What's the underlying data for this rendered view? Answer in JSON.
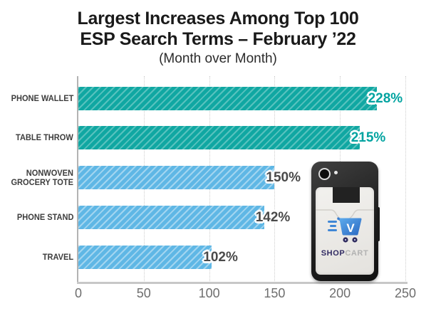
{
  "title": {
    "line1": "Largest Increases Among Top 100",
    "line2": "ESP Search Terms – February ’22",
    "subtitle": "(Month over Month)"
  },
  "chart_data": {
    "type": "bar",
    "orientation": "horizontal",
    "title": "Largest Increases Among Top 100 ESP Search Terms – February ’22",
    "subtitle": "(Month over Month)",
    "categories": [
      "PHONE WALLET",
      "TABLE THROW",
      "NONWOVEN GROCERY TOTE",
      "PHONE STAND",
      "TRAVEL"
    ],
    "values": [
      228,
      215,
      150,
      142,
      102
    ],
    "value_labels": [
      "228%",
      "215%",
      "150%",
      "142%",
      "102%"
    ],
    "xlim": [
      0,
      250
    ],
    "x_ticks": [
      "0",
      "50",
      "100",
      "150",
      "200",
      "250"
    ],
    "grid": "vertical-dotted",
    "legend": "none",
    "bar_styles": [
      {
        "class": "teal",
        "fill": "#10a7a2",
        "label_color": "#00a3a0"
      },
      {
        "class": "teal",
        "fill": "#10a7a2",
        "label_color": "#00a3a0"
      },
      {
        "class": "blue",
        "fill": "#5fb7e5",
        "label_color": "#4a4a4a"
      },
      {
        "class": "blue",
        "fill": "#5fb7e5",
        "label_color": "#4a4a4a"
      },
      {
        "class": "blue",
        "fill": "#5fb7e5",
        "label_color": "#4a4a4a"
      }
    ]
  },
  "product": {
    "brand_shop": "SHOP",
    "brand_cart": "CART",
    "logo_icon": "shopping-cart-icon",
    "cart_letter": "V"
  },
  "colors": {
    "teal_bar": "#10a7a2",
    "blue_bar": "#5fb7e5",
    "teal_label": "#00a3a0",
    "gray_label": "#4a4a4a",
    "axis_line": "#c7c7c7",
    "gridline": "#cdcdcd",
    "tick_text": "#6e6e6e",
    "category_text": "#3d3d3d",
    "title_text": "#1a1a1a"
  }
}
